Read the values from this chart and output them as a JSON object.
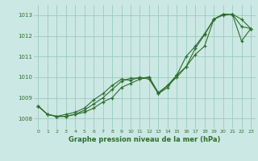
{
  "title": "",
  "xlabel": "Graphe pression niveau de la mer (hPa)",
  "bg_color": "#cce8e4",
  "grid_color": "#99ccbb",
  "line_color": "#2d6e2d",
  "ylim": [
    1007.5,
    1013.5
  ],
  "xlim": [
    -0.5,
    23.5
  ],
  "yticks": [
    1008,
    1009,
    1010,
    1011,
    1012,
    1013
  ],
  "xticks": [
    0,
    1,
    2,
    3,
    4,
    5,
    6,
    7,
    8,
    9,
    10,
    11,
    12,
    13,
    14,
    15,
    16,
    17,
    18,
    19,
    20,
    21,
    22,
    23
  ],
  "series": [
    [
      1008.6,
      1008.2,
      1008.1,
      1008.1,
      1008.2,
      1008.3,
      1008.5,
      1008.8,
      1009.0,
      1009.5,
      1009.7,
      1009.9,
      1010.0,
      1009.2,
      1009.5,
      1010.1,
      1010.5,
      1011.1,
      1011.5,
      1012.8,
      1013.0,
      1013.05,
      1012.8,
      1012.35
    ],
    [
      1008.6,
      1008.2,
      1008.1,
      1008.1,
      1008.2,
      1008.4,
      1008.7,
      1009.0,
      1009.4,
      1009.8,
      1009.95,
      1009.95,
      1010.0,
      1009.25,
      1009.6,
      1010.0,
      1010.5,
      1011.4,
      1012.05,
      1012.8,
      1013.05,
      1013.05,
      1012.45,
      1012.35
    ],
    [
      1008.6,
      1008.2,
      1008.1,
      1008.2,
      1008.3,
      1008.5,
      1008.9,
      1009.2,
      1009.6,
      1009.9,
      1009.85,
      1010.0,
      1009.9,
      1009.2,
      1009.6,
      1010.1,
      1011.0,
      1011.5,
      1012.1,
      1012.8,
      1013.05,
      1013.05,
      1011.75,
      1012.35
    ]
  ]
}
